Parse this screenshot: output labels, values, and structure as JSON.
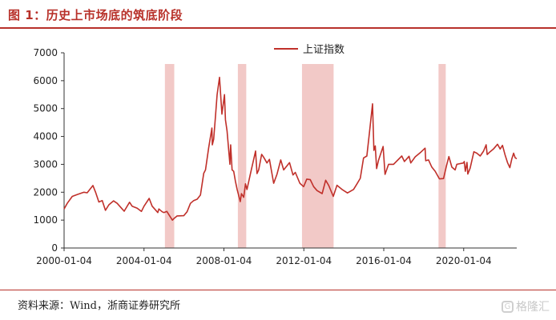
{
  "figure": {
    "title": "图 1：历史上市场底的筑底阶段",
    "source": "资料来源：Wind，浙商证券研究所"
  },
  "watermark": {
    "text": "格隆汇",
    "icon": "gelonghui-logo-icon"
  },
  "colors": {
    "accent": "#b8312a",
    "line": "#c0302a",
    "shade": "#f2c9c7"
  },
  "chart_data": {
    "type": "line",
    "title": "",
    "xlabel": "",
    "ylabel": "",
    "ylim": [
      0,
      7000
    ],
    "yticks": [
      0,
      1000,
      2000,
      3000,
      4000,
      5000,
      6000,
      7000
    ],
    "xticks": [
      "2000-01-04",
      "2004-01-04",
      "2008-01-04",
      "2012-01-04",
      "2016-01-04",
      "2020-01-04"
    ],
    "xlim": [
      "2000-01-04",
      "2022-08-31"
    ],
    "legend": {
      "position": "top-center",
      "label": "上证指数"
    },
    "grid": false,
    "series": [
      {
        "name": "上证指数",
        "points": [
          [
            "2000-01-04",
            1400
          ],
          [
            "2000-03-01",
            1600
          ],
          [
            "2000-06-01",
            1850
          ],
          [
            "2000-09-01",
            1920
          ],
          [
            "2001-01-01",
            2000
          ],
          [
            "2001-03-01",
            1980
          ],
          [
            "2001-06-14",
            2240
          ],
          [
            "2001-08-01",
            2000
          ],
          [
            "2001-10-01",
            1650
          ],
          [
            "2001-12-01",
            1700
          ],
          [
            "2002-01-29",
            1350
          ],
          [
            "2002-04-01",
            1550
          ],
          [
            "2002-06-25",
            1690
          ],
          [
            "2002-09-01",
            1600
          ],
          [
            "2002-12-01",
            1400
          ],
          [
            "2003-01-06",
            1320
          ],
          [
            "2003-04-15",
            1640
          ],
          [
            "2003-06-01",
            1500
          ],
          [
            "2003-09-01",
            1430
          ],
          [
            "2003-11-18",
            1310
          ],
          [
            "2004-01-04",
            1500
          ],
          [
            "2004-04-07",
            1780
          ],
          [
            "2004-06-01",
            1500
          ],
          [
            "2004-09-13",
            1270
          ],
          [
            "2004-10-01",
            1400
          ],
          [
            "2004-12-01",
            1300
          ],
          [
            "2005-01-01",
            1270
          ],
          [
            "2005-02-25",
            1310
          ],
          [
            "2005-04-01",
            1200
          ],
          [
            "2005-06-06",
            998
          ],
          [
            "2005-07-01",
            1050
          ],
          [
            "2005-09-01",
            1150
          ],
          [
            "2005-12-31",
            1160
          ],
          [
            "2006-03-01",
            1300
          ],
          [
            "2006-05-01",
            1600
          ],
          [
            "2006-07-01",
            1700
          ],
          [
            "2006-09-01",
            1750
          ],
          [
            "2006-11-01",
            1900
          ],
          [
            "2006-12-31",
            2680
          ],
          [
            "2007-02-01",
            2800
          ],
          [
            "2007-04-01",
            3600
          ],
          [
            "2007-05-29",
            4300
          ],
          [
            "2007-06-05",
            3700
          ],
          [
            "2007-07-01",
            3900
          ],
          [
            "2007-08-01",
            4700
          ],
          [
            "2007-09-01",
            5500
          ],
          [
            "2007-10-16",
            6120
          ],
          [
            "2007-11-28",
            4800
          ],
          [
            "2008-01-14",
            5500
          ],
          [
            "2008-02-01",
            4600
          ],
          [
            "2008-03-01",
            4200
          ],
          [
            "2008-04-22",
            3000
          ],
          [
            "2008-05-06",
            3700
          ],
          [
            "2008-06-01",
            2800
          ],
          [
            "2008-07-01",
            2750
          ],
          [
            "2008-08-01",
            2400
          ],
          [
            "2008-09-01",
            2100
          ],
          [
            "2008-10-28",
            1665
          ],
          [
            "2008-11-20",
            1950
          ],
          [
            "2008-12-31",
            1820
          ],
          [
            "2009-02-01",
            2300
          ],
          [
            "2009-03-01",
            2100
          ],
          [
            "2009-05-01",
            2650
          ],
          [
            "2009-08-04",
            3478
          ],
          [
            "2009-08-31",
            2670
          ],
          [
            "2009-10-01",
            2800
          ],
          [
            "2009-11-24",
            3360
          ],
          [
            "2010-01-01",
            3250
          ],
          [
            "2010-03-01",
            3050
          ],
          [
            "2010-04-15",
            3180
          ],
          [
            "2010-07-02",
            2320
          ],
          [
            "2010-09-01",
            2650
          ],
          [
            "2010-11-08",
            3160
          ],
          [
            "2010-12-31",
            2800
          ],
          [
            "2011-04-18",
            3060
          ],
          [
            "2011-06-20",
            2620
          ],
          [
            "2011-08-01",
            2710
          ],
          [
            "2011-10-24",
            2320
          ],
          [
            "2011-12-31",
            2200
          ],
          [
            "2012-02-27",
            2470
          ],
          [
            "2012-05-01",
            2450
          ],
          [
            "2012-07-01",
            2200
          ],
          [
            "2012-09-01",
            2060
          ],
          [
            "2012-12-04",
            1950
          ],
          [
            "2013-02-06",
            2430
          ],
          [
            "2013-04-01",
            2250
          ],
          [
            "2013-06-25",
            1850
          ],
          [
            "2013-09-01",
            2250
          ],
          [
            "2013-12-01",
            2100
          ],
          [
            "2014-03-12",
            1975
          ],
          [
            "2014-05-01",
            2030
          ],
          [
            "2014-07-01",
            2100
          ],
          [
            "2014-09-01",
            2300
          ],
          [
            "2014-11-01",
            2500
          ],
          [
            "2014-12-31",
            3230
          ],
          [
            "2015-03-01",
            3300
          ],
          [
            "2015-04-15",
            4100
          ],
          [
            "2015-06-12",
            5170
          ],
          [
            "2015-07-08",
            3500
          ],
          [
            "2015-08-01",
            3660
          ],
          [
            "2015-08-26",
            2850
          ],
          [
            "2015-10-01",
            3150
          ],
          [
            "2015-12-23",
            3640
          ],
          [
            "2016-01-27",
            2640
          ],
          [
            "2016-04-01",
            3000
          ],
          [
            "2016-07-01",
            3000
          ],
          [
            "2016-11-29",
            3300
          ],
          [
            "2017-01-16",
            3100
          ],
          [
            "2017-04-11",
            3290
          ],
          [
            "2017-05-11",
            3050
          ],
          [
            "2017-08-01",
            3270
          ],
          [
            "2017-11-14",
            3440
          ],
          [
            "2018-01-29",
            3580
          ],
          [
            "2018-02-09",
            3130
          ],
          [
            "2018-04-01",
            3160
          ],
          [
            "2018-06-01",
            2900
          ],
          [
            "2018-08-01",
            2750
          ],
          [
            "2018-10-18",
            2480
          ],
          [
            "2018-12-31",
            2490
          ],
          [
            "2019-02-25",
            2960
          ],
          [
            "2019-04-08",
            3280
          ],
          [
            "2019-06-01",
            2900
          ],
          [
            "2019-08-01",
            2800
          ],
          [
            "2019-09-01",
            3000
          ],
          [
            "2019-12-31",
            3050
          ],
          [
            "2020-01-14",
            3100
          ],
          [
            "2020-02-03",
            2750
          ],
          [
            "2020-03-05",
            3070
          ],
          [
            "2020-03-19",
            2650
          ],
          [
            "2020-05-01",
            2860
          ],
          [
            "2020-07-09",
            3450
          ],
          [
            "2020-09-01",
            3400
          ],
          [
            "2020-11-01",
            3300
          ],
          [
            "2020-12-31",
            3470
          ],
          [
            "2021-02-18",
            3700
          ],
          [
            "2021-03-09",
            3350
          ],
          [
            "2021-05-01",
            3450
          ],
          [
            "2021-07-01",
            3550
          ],
          [
            "2021-09-14",
            3720
          ],
          [
            "2021-11-01",
            3550
          ],
          [
            "2021-12-13",
            3680
          ],
          [
            "2022-01-28",
            3350
          ],
          [
            "2022-03-15",
            3060
          ],
          [
            "2022-04-27",
            2880
          ],
          [
            "2022-06-01",
            3190
          ],
          [
            "2022-07-05",
            3400
          ],
          [
            "2022-08-01",
            3240
          ],
          [
            "2022-08-31",
            3200
          ]
        ]
      }
    ],
    "shaded_ranges": [
      [
        "2005-01-20",
        "2005-07-10"
      ],
      [
        "2008-09-15",
        "2009-02-15"
      ],
      [
        "2011-12-01",
        "2013-07-01"
      ],
      [
        "2018-10-01",
        "2019-02-10"
      ]
    ]
  }
}
